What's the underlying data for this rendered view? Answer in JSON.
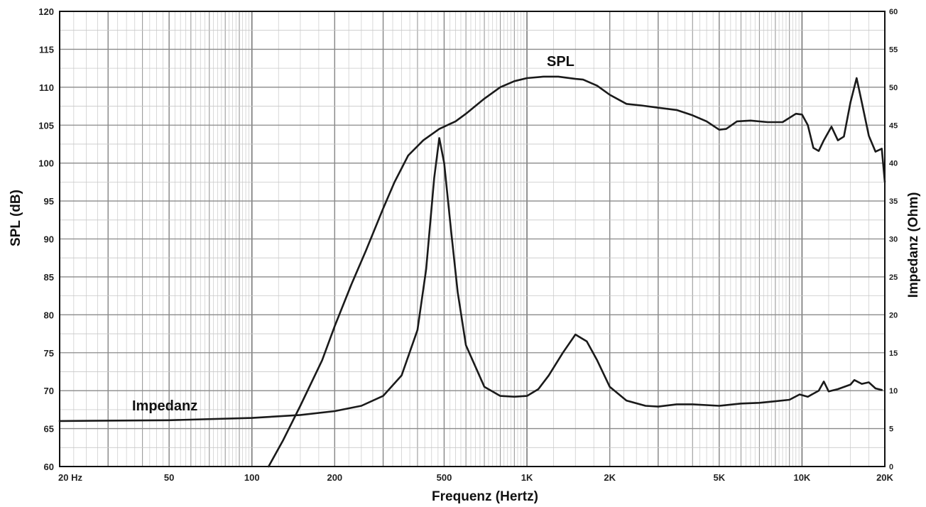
{
  "chart_data": {
    "type": "line",
    "xlabel": "Frequenz (Hertz)",
    "ylabel": "SPL (dB)",
    "y2label": "Impedanz (Ohm)",
    "x_scale": "log",
    "xlim": [
      20,
      20000
    ],
    "ylim": [
      60,
      120
    ],
    "y2lim": [
      0,
      60
    ],
    "grid": true,
    "x_ticks": [
      {
        "value": 20,
        "label": "20  Hz"
      },
      {
        "value": 50,
        "label": "50"
      },
      {
        "value": 100,
        "label": "100"
      },
      {
        "value": 200,
        "label": "200"
      },
      {
        "value": 500,
        "label": "500"
      },
      {
        "value": 1000,
        "label": "1K"
      },
      {
        "value": 2000,
        "label": "2K"
      },
      {
        "value": 5000,
        "label": "5K"
      },
      {
        "value": 10000,
        "label": "10K"
      },
      {
        "value": 20000,
        "label": "20K"
      }
    ],
    "y_ticks": [
      60,
      65,
      70,
      75,
      80,
      85,
      90,
      95,
      100,
      105,
      110,
      115,
      120
    ],
    "y2_ticks": [
      0,
      5,
      10,
      15,
      20,
      25,
      30,
      35,
      40,
      45,
      50,
      55,
      60
    ],
    "series": [
      {
        "name": "SPL",
        "axis": "left",
        "x": [
          115,
          130,
          150,
          180,
          200,
          230,
          260,
          300,
          330,
          370,
          420,
          480,
          550,
          600,
          700,
          800,
          900,
          1000,
          1150,
          1300,
          1500,
          1600,
          1800,
          2000,
          2300,
          2600,
          3000,
          3500,
          4000,
          4500,
          5000,
          5300,
          5800,
          6500,
          7500,
          8500,
          9500,
          10000,
          10500,
          11000,
          11500,
          12000,
          12800,
          13500,
          14200,
          15000,
          15800,
          16500,
          17500,
          18500,
          19500,
          20000
        ],
        "y": [
          60,
          63.5,
          68,
          74,
          78.5,
          84,
          88.5,
          94,
          97.5,
          101,
          103,
          104.5,
          105.5,
          106.5,
          108.5,
          110,
          110.8,
          111.2,
          111.4,
          111.4,
          111.1,
          111,
          110.2,
          109,
          107.8,
          107.6,
          107.3,
          107,
          106.3,
          105.5,
          104.4,
          104.5,
          105.5,
          105.6,
          105.4,
          105.4,
          106.5,
          106.4,
          105,
          102,
          101.6,
          103,
          104.8,
          103,
          103.5,
          108,
          111.2,
          108,
          103.6,
          101.5,
          101.9,
          97.5
        ]
      },
      {
        "name": "Impedanz",
        "axis": "right",
        "x": [
          20,
          50,
          100,
          150,
          200,
          250,
          300,
          350,
          400,
          430,
          460,
          480,
          500,
          530,
          560,
          600,
          700,
          800,
          900,
          1000,
          1100,
          1200,
          1350,
          1500,
          1650,
          1800,
          2000,
          2300,
          2700,
          3000,
          3500,
          4000,
          5000,
          6000,
          7000,
          8000,
          9000,
          9800,
          10500,
          11500,
          12000,
          12500,
          13500,
          15000,
          15500,
          16500,
          17500,
          18500,
          19500
        ],
        "y": [
          6,
          6.1,
          6.4,
          6.8,
          7.3,
          8,
          9.3,
          12,
          18,
          26,
          38,
          43.3,
          40,
          31,
          23,
          16,
          10.5,
          9.3,
          9.2,
          9.3,
          10.2,
          12,
          15,
          17.4,
          16.5,
          14,
          10.5,
          8.7,
          8,
          7.9,
          8.2,
          8.2,
          8,
          8.3,
          8.4,
          8.6,
          8.8,
          9.5,
          9.2,
          10,
          11.2,
          9.9,
          10.2,
          10.8,
          11.4,
          10.9,
          11.1,
          10.3,
          10.1
        ]
      }
    ]
  }
}
